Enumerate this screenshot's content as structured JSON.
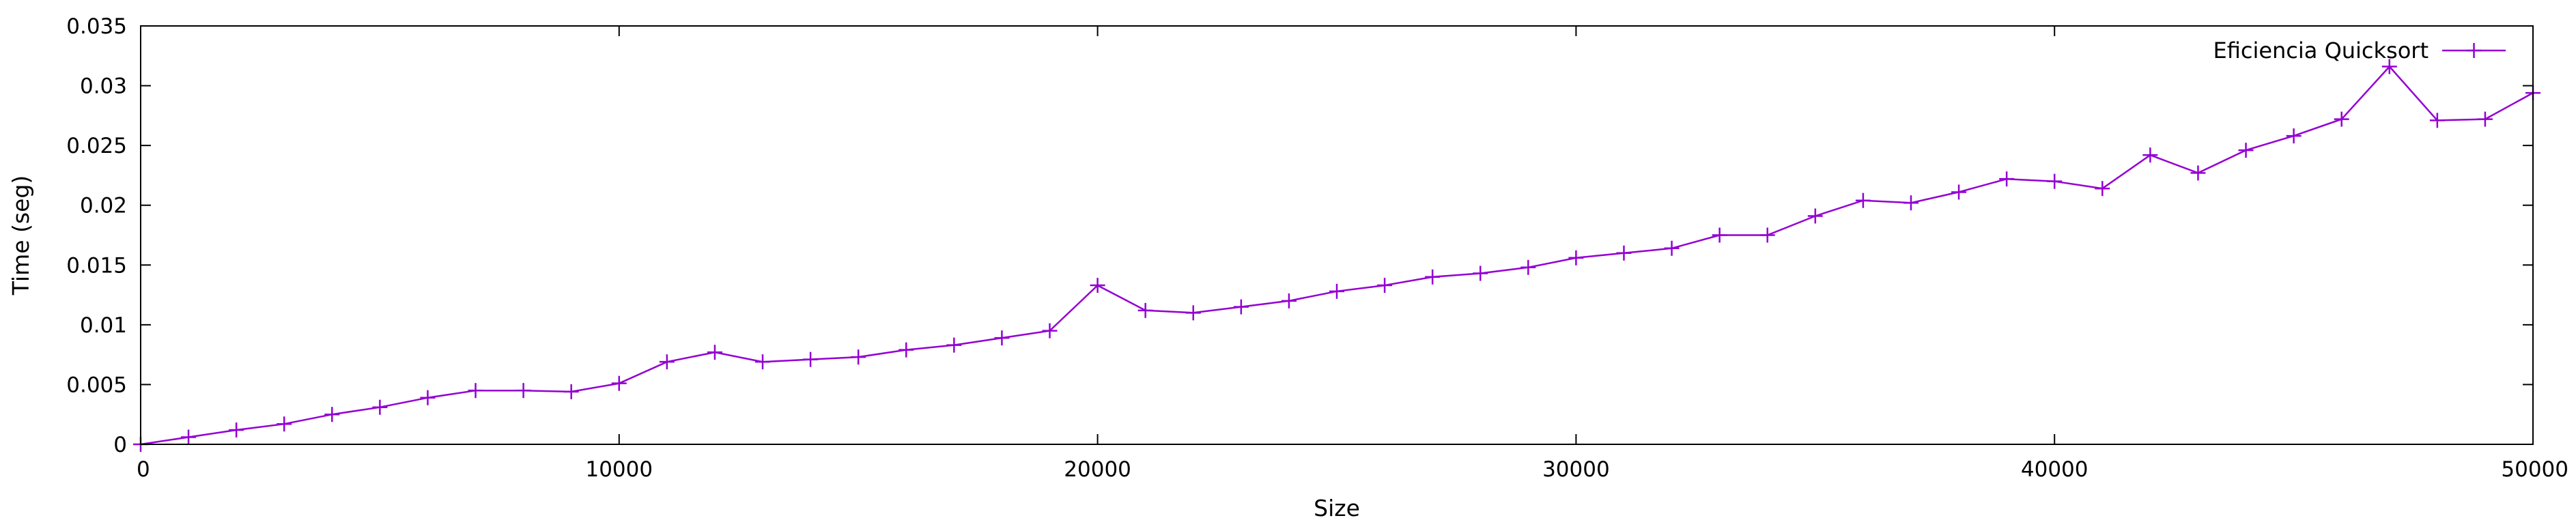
{
  "chart_data": {
    "type": "line",
    "xlabel": "Size",
    "ylabel": "Time (seg)",
    "xlim": [
      0,
      50000
    ],
    "ylim": [
      0,
      0.035
    ],
    "xticks": [
      0,
      10000,
      20000,
      30000,
      40000,
      50000
    ],
    "yticks": [
      0,
      0.005,
      0.01,
      0.015,
      0.02,
      0.025,
      0.03,
      0.035
    ],
    "grid": false,
    "legend_position": "top-right",
    "series": [
      {
        "name": "Eficiencia Quicksort",
        "color": "#9400d3",
        "marker": "plus",
        "x": [
          0,
          1000,
          2000,
          3000,
          4000,
          5000,
          6000,
          7000,
          8000,
          9000,
          10000,
          11000,
          12000,
          13000,
          14000,
          15000,
          16000,
          17000,
          18000,
          19000,
          20000,
          21000,
          22000,
          23000,
          24000,
          25000,
          26000,
          27000,
          28000,
          29000,
          30000,
          31000,
          32000,
          33000,
          34000,
          35000,
          36000,
          37000,
          38000,
          39000,
          40000,
          41000,
          42000,
          43000,
          44000,
          45000,
          46000,
          47000,
          48000,
          49000,
          50000
        ],
        "values": [
          0.0,
          0.0006,
          0.0012,
          0.0017,
          0.0025,
          0.0031,
          0.0039,
          0.0045,
          0.0045,
          0.0044,
          0.0051,
          0.0069,
          0.0077,
          0.0069,
          0.0071,
          0.0073,
          0.0079,
          0.0083,
          0.0089,
          0.0095,
          0.0133,
          0.0112,
          0.011,
          0.0115,
          0.012,
          0.0128,
          0.0133,
          0.014,
          0.0143,
          0.0148,
          0.0156,
          0.016,
          0.0164,
          0.0175,
          0.0175,
          0.0191,
          0.0204,
          0.0202,
          0.0211,
          0.0222,
          0.022,
          0.0214,
          0.0242,
          0.0227,
          0.0246,
          0.0258,
          0.0272,
          0.0316,
          0.0271,
          0.0272,
          0.0294
        ]
      }
    ]
  }
}
